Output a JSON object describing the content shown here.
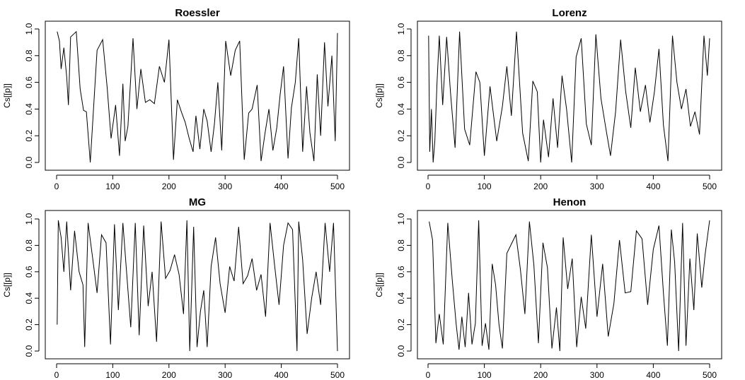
{
  "chart_data": [
    {
      "type": "line",
      "title": "Roessler",
      "xlabel": "",
      "ylabel": "Cs[[p]]",
      "xlim": [
        0,
        500
      ],
      "ylim": [
        0,
        1
      ],
      "xticks": [
        "0",
        "100",
        "200",
        "300",
        "400",
        "500"
      ],
      "yticks": [
        "0.0",
        "0.2",
        "0.4",
        "0.6",
        "0.8",
        "1.0"
      ],
      "series": [
        {
          "x": [
            1,
            5,
            8,
            13,
            18,
            21,
            25,
            35,
            42,
            48,
            53,
            60,
            72,
            82,
            90,
            97,
            105,
            112,
            118,
            122,
            127,
            136,
            143,
            150,
            158,
            166,
            174,
            183,
            192,
            200,
            208,
            215,
            222,
            229,
            236,
            243,
            248,
            255,
            262,
            268,
            275,
            281,
            287,
            294,
            301,
            310,
            318,
            326,
            334,
            342,
            348,
            357,
            364,
            371,
            378,
            385,
            392,
            398,
            404,
            412,
            418,
            425,
            431,
            438,
            445,
            451,
            458,
            464,
            470,
            477,
            483,
            490,
            496,
            500
          ],
          "y": [
            0.98,
            0.91,
            0.7,
            0.86,
            0.64,
            0.43,
            0.94,
            0.98,
            0.55,
            0.39,
            0.38,
            0.0,
            0.84,
            0.92,
            0.56,
            0.18,
            0.43,
            0.05,
            0.59,
            0.16,
            0.27,
            0.93,
            0.4,
            0.7,
            0.45,
            0.47,
            0.44,
            0.72,
            0.6,
            0.92,
            0.02,
            0.47,
            0.38,
            0.3,
            0.18,
            0.08,
            0.35,
            0.1,
            0.4,
            0.31,
            0.08,
            0.29,
            0.6,
            0.09,
            0.91,
            0.65,
            0.84,
            0.91,
            0.02,
            0.37,
            0.4,
            0.58,
            0.01,
            0.22,
            0.4,
            0.09,
            0.26,
            0.51,
            0.72,
            0.03,
            0.41,
            0.6,
            0.93,
            0.08,
            0.57,
            0.22,
            0.01,
            0.66,
            0.2,
            0.9,
            0.42,
            0.8,
            0.16,
            0.97
          ]
        }
      ]
    },
    {
      "type": "line",
      "title": "Lorenz",
      "xlabel": "",
      "ylabel": "Cs[[p]]",
      "xlim": [
        0,
        500
      ],
      "ylim": [
        0,
        1
      ],
      "xticks": [
        "0",
        "100",
        "200",
        "300",
        "400",
        "500"
      ],
      "yticks": [
        "0.0",
        "0.2",
        "0.4",
        "0.6",
        "0.8",
        "1.0"
      ],
      "series": [
        {
          "x": [
            1,
            3,
            6,
            9,
            12,
            16,
            20,
            26,
            33,
            40,
            48,
            56,
            65,
            74,
            85,
            92,
            100,
            110,
            122,
            132,
            140,
            148,
            157,
            168,
            178,
            186,
            194,
            200,
            205,
            214,
            222,
            230,
            238,
            246,
            255,
            263,
            272,
            281,
            290,
            298,
            307,
            316,
            324,
            333,
            342,
            351,
            360,
            368,
            377,
            386,
            394,
            402,
            410,
            418,
            426,
            434,
            442,
            450,
            458,
            466,
            474,
            482,
            490,
            496,
            500
          ],
          "y": [
            0.95,
            0.08,
            0.4,
            0.0,
            0.16,
            0.6,
            0.95,
            0.43,
            0.94,
            0.52,
            0.11,
            0.98,
            0.25,
            0.13,
            0.68,
            0.6,
            0.05,
            0.57,
            0.16,
            0.42,
            0.72,
            0.35,
            0.98,
            0.22,
            0.01,
            0.61,
            0.53,
            0.0,
            0.32,
            0.04,
            0.48,
            0.11,
            0.65,
            0.4,
            0.0,
            0.79,
            0.93,
            0.29,
            0.13,
            0.96,
            0.48,
            0.25,
            0.05,
            0.38,
            0.92,
            0.53,
            0.26,
            0.71,
            0.38,
            0.58,
            0.3,
            0.53,
            0.85,
            0.28,
            0.01,
            0.95,
            0.6,
            0.4,
            0.55,
            0.27,
            0.38,
            0.21,
            0.95,
            0.65,
            0.93
          ]
        }
      ]
    },
    {
      "type": "line",
      "title": "MG",
      "xlabel": "",
      "ylabel": "Cs[[p]]",
      "xlim": [
        0,
        500
      ],
      "ylim": [
        0,
        1
      ],
      "xticks": [
        "0",
        "100",
        "200",
        "300",
        "400",
        "500"
      ],
      "yticks": [
        "0.0",
        "0.2",
        "0.4",
        "0.6",
        "0.8",
        "1.0"
      ],
      "series": [
        {
          "x": [
            1,
            3,
            8,
            13,
            18,
            25,
            32,
            40,
            47,
            50,
            56,
            64,
            72,
            80,
            88,
            96,
            103,
            110,
            118,
            125,
            132,
            140,
            147,
            155,
            163,
            170,
            178,
            186,
            194,
            202,
            210,
            218,
            226,
            232,
            237,
            244,
            250,
            256,
            262,
            268,
            275,
            283,
            291,
            300,
            308,
            316,
            324,
            332,
            340,
            348,
            356,
            364,
            372,
            380,
            388,
            396,
            404,
            412,
            420,
            428,
            431,
            438,
            446,
            454,
            462,
            470,
            478,
            486,
            493,
            500
          ],
          "y": [
            0.2,
            0.99,
            0.86,
            0.6,
            0.98,
            0.46,
            0.91,
            0.6,
            0.5,
            0.03,
            0.97,
            0.71,
            0.44,
            0.88,
            0.82,
            0.05,
            0.96,
            0.31,
            0.97,
            0.57,
            0.18,
            0.97,
            0.12,
            0.95,
            0.34,
            0.6,
            0.07,
            0.98,
            0.55,
            0.61,
            0.73,
            0.58,
            0.28,
            0.99,
            0.0,
            0.94,
            0.03,
            0.3,
            0.46,
            0.03,
            0.64,
            0.86,
            0.51,
            0.29,
            0.64,
            0.53,
            0.94,
            0.51,
            0.57,
            0.7,
            0.46,
            0.58,
            0.26,
            0.97,
            0.65,
            0.35,
            0.8,
            0.97,
            0.92,
            0.0,
            0.98,
            0.69,
            0.13,
            0.4,
            0.6,
            0.35,
            0.97,
            0.6,
            0.97,
            0.0
          ]
        }
      ]
    },
    {
      "type": "line",
      "title": "Henon",
      "xlabel": "",
      "ylabel": "Cs[[p]]",
      "xlim": [
        0,
        500
      ],
      "ylim": [
        0,
        1
      ],
      "xticks": [
        "0",
        "100",
        "200",
        "300",
        "400",
        "500"
      ],
      "yticks": [
        "0.0",
        "0.2",
        "0.4",
        "0.6",
        "0.8",
        "1.0"
      ],
      "series": [
        {
          "x": [
            2,
            8,
            14,
            20,
            27,
            35,
            43,
            50,
            55,
            60,
            66,
            72,
            78,
            84,
            90,
            96,
            102,
            108,
            114,
            120,
            126,
            132,
            140,
            148,
            156,
            164,
            172,
            180,
            188,
            196,
            204,
            212,
            220,
            228,
            234,
            240,
            248,
            256,
            264,
            272,
            280,
            290,
            300,
            310,
            320,
            330,
            340,
            350,
            360,
            370,
            380,
            390,
            400,
            410,
            418,
            425,
            432,
            438,
            445,
            452,
            458,
            465,
            472,
            478,
            486,
            492,
            500
          ],
          "y": [
            0.98,
            0.84,
            0.06,
            0.28,
            0.05,
            0.97,
            0.54,
            0.2,
            0.01,
            0.26,
            0.03,
            0.44,
            0.05,
            0.21,
            0.99,
            0.04,
            0.21,
            0.01,
            0.66,
            0.5,
            0.2,
            0.02,
            0.74,
            0.81,
            0.88,
            0.62,
            0.28,
            0.98,
            0.65,
            0.06,
            0.82,
            0.63,
            0.02,
            0.33,
            0.0,
            0.86,
            0.47,
            0.7,
            0.03,
            0.41,
            0.17,
            0.88,
            0.26,
            0.66,
            0.11,
            0.36,
            0.84,
            0.44,
            0.45,
            0.91,
            0.85,
            0.35,
            0.77,
            0.95,
            0.44,
            0.04,
            0.92,
            0.67,
            0.0,
            0.97,
            0.04,
            0.7,
            0.31,
            0.89,
            0.48,
            0.73,
            0.99
          ]
        }
      ]
    }
  ]
}
